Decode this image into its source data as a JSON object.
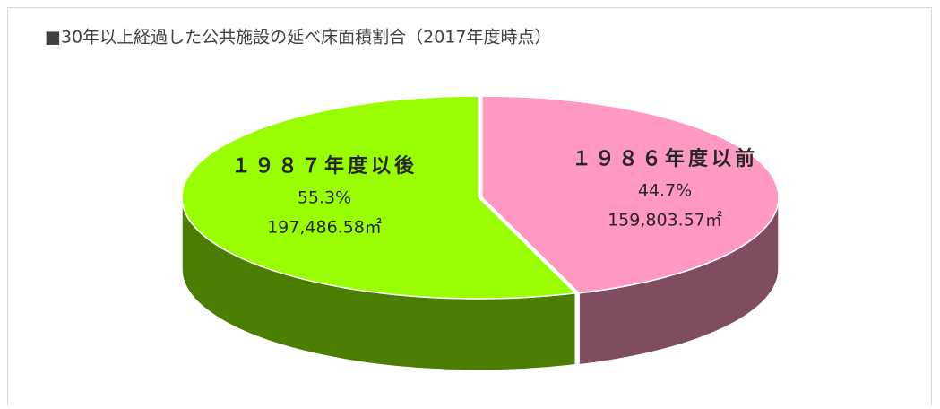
{
  "chart_data": {
    "type": "pie3d",
    "title": "■30年以上経過した公共施設の延べ床面積割合（2017年度時点）",
    "categories": [
      "１９８６年度以前",
      "１９８７年度以後"
    ],
    "values": [
      44.7,
      55.3
    ],
    "value_labels": [
      "44.7%",
      "55.3%"
    ],
    "areas": [
      159803.57,
      197486.58
    ],
    "area_labels": [
      "159,803.57㎡",
      "197,486.58㎡"
    ],
    "colors": [
      "#ff99c4",
      "#99ff00"
    ],
    "side_colors": [
      "#7f4c60",
      "#4a7d00"
    ]
  }
}
